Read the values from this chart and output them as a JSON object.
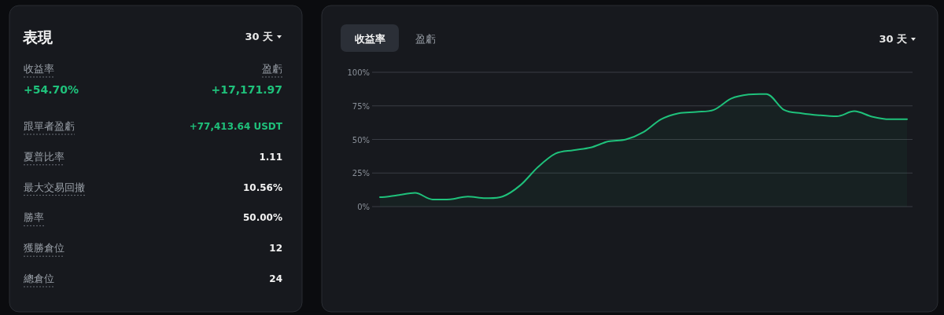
{
  "chart_data": [
    {
      "type": "other",
      "title": "表現",
      "annotations": [
        "30 天",
        "收益率",
        "盈虧",
        "+54.70%",
        "+17,171.97",
        "跟單者盈虧",
        "+77,413.64 USDT",
        "夏普比率",
        "1.11",
        "最大交易回撤",
        "10.56%",
        "勝率",
        "50.00%",
        "獲勝倉位",
        "12",
        "總倉位",
        "24"
      ]
    },
    {
      "type": "area",
      "color": "#1fc17b",
      "marker": "none",
      "grid": "y",
      "tick_labels": "y",
      "annotations": [
        "收益率",
        "盈虧",
        "30 天"
      ],
      "categories": [
        null,
        null,
        null,
        null,
        null,
        null,
        null,
        null,
        null,
        null,
        null,
        null,
        null,
        null,
        null,
        null,
        null,
        null,
        null,
        null,
        null,
        null,
        null,
        null,
        null,
        null,
        null,
        null,
        null,
        null,
        null
      ],
      "values": [
        7,
        8.5,
        10.2,
        5.3,
        5.4,
        7.5,
        6.3,
        7.6,
        16,
        29.5,
        39.5,
        42,
        44,
        48.5,
        50,
        55.5,
        65,
        69.5,
        70.5,
        72,
        80.5,
        83.5,
        83.8,
        72,
        69.5,
        68,
        67.2,
        71,
        67,
        65,
        65
      ],
      "ylim": [
        0,
        100
      ],
      "yticks": [
        {
          "value": 0,
          "label": "0%"
        },
        {
          "value": 25,
          "label": "25%"
        },
        {
          "value": 50,
          "label": "50%"
        },
        {
          "value": 75,
          "label": "75%"
        },
        {
          "value": 100,
          "label": "100%"
        }
      ]
    }
  ]
}
